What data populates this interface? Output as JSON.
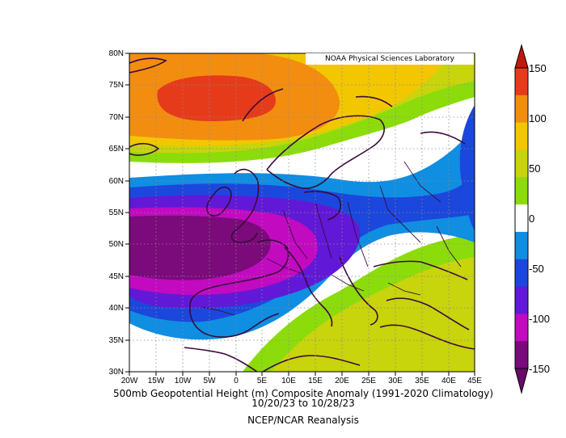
{
  "credit": "NOAA Physical Sciences Laboratory",
  "caption": {
    "line1": "500mb Geopotential Height (m) Composite Anomaly (1991-2020 Climatology)",
    "line2": "10/20/23  to 10/28/23",
    "line3": "NCEP/NCAR Reanalysis"
  },
  "lat_ticks": [
    "80N",
    "75N",
    "70N",
    "65N",
    "60N",
    "55N",
    "50N",
    "45N",
    "40N",
    "35N",
    "30N"
  ],
  "lon_ticks": [
    "20W",
    "15W",
    "10W",
    "5W",
    "0",
    "5E",
    "10E",
    "15E",
    "20E",
    "25E",
    "30E",
    "35E",
    "40E",
    "45E"
  ],
  "colorbar": {
    "labels": [
      "150",
      "100",
      "50",
      "0",
      "-50",
      "-100",
      "-150"
    ],
    "colors": [
      "#e63b1b",
      "#f38d10",
      "#f2c700",
      "#c8d40c",
      "#8cdc0c",
      "#ffffff",
      "#0f8ee2",
      "#1c47dd",
      "#6119d7",
      "#c20ac1",
      "#7b0a7b"
    ]
  },
  "chart_data": {
    "type": "heatmap",
    "title": "500mb Geopotential Height (m) Composite Anomaly (1991-2020 Climatology)",
    "date_range": "10/20/23  to 10/28/23",
    "source": "NCEP/NCAR Reanalysis",
    "xlim": [
      "20W",
      "45E"
    ],
    "ylim": [
      "30N",
      "80N"
    ],
    "grid": true,
    "color_scale": [
      -150,
      150
    ],
    "features": [
      {
        "name": "positive-anomaly-max",
        "value": 150,
        "location": "near 73N, 6W (Norwegian Sea)"
      },
      {
        "name": "negative-anomaly-min",
        "value": -150,
        "location": "near 50N, 10W (west of British Isles)"
      },
      {
        "name": "positive-anomaly-southeast",
        "value": 50,
        "location": "near 40N, 25E (eastern Mediterranean)"
      },
      {
        "name": "negative-anomaly-east",
        "value": -60,
        "location": "near 57N, 44E"
      }
    ]
  }
}
